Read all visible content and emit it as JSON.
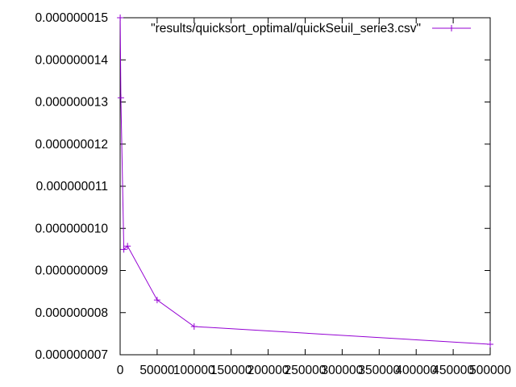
{
  "chart_data": {
    "type": "line",
    "title": "",
    "xlabel": "",
    "ylabel": "",
    "xlim": [
      0,
      500000
    ],
    "ylim": [
      7e-09,
      1.5e-08
    ],
    "grid": false,
    "legend_position": "top-right",
    "x_ticks": [
      "0",
      "50000",
      "100000",
      "150000",
      "200000",
      "250000",
      "300000",
      "350000",
      "400000",
      "450000",
      "500000"
    ],
    "y_ticks": [
      "0.000000007",
      "0.000000008",
      "0.000000009",
      "0.000000010",
      "0.000000011",
      "0.000000012",
      "0.000000013",
      "0.000000014",
      "0.000000015"
    ],
    "series": [
      {
        "name": "\"results/quicksort_optimal/quickSeuil_serie3.csv\"",
        "color": "#9400d3",
        "x": [
          100,
          1000,
          5000,
          10000,
          50000,
          100000,
          500000
        ],
        "y": [
          1.5e-08,
          1.31e-08,
          9.5e-09,
          9.58e-09,
          8.3e-09,
          7.67e-09,
          7.25e-09
        ]
      }
    ]
  }
}
